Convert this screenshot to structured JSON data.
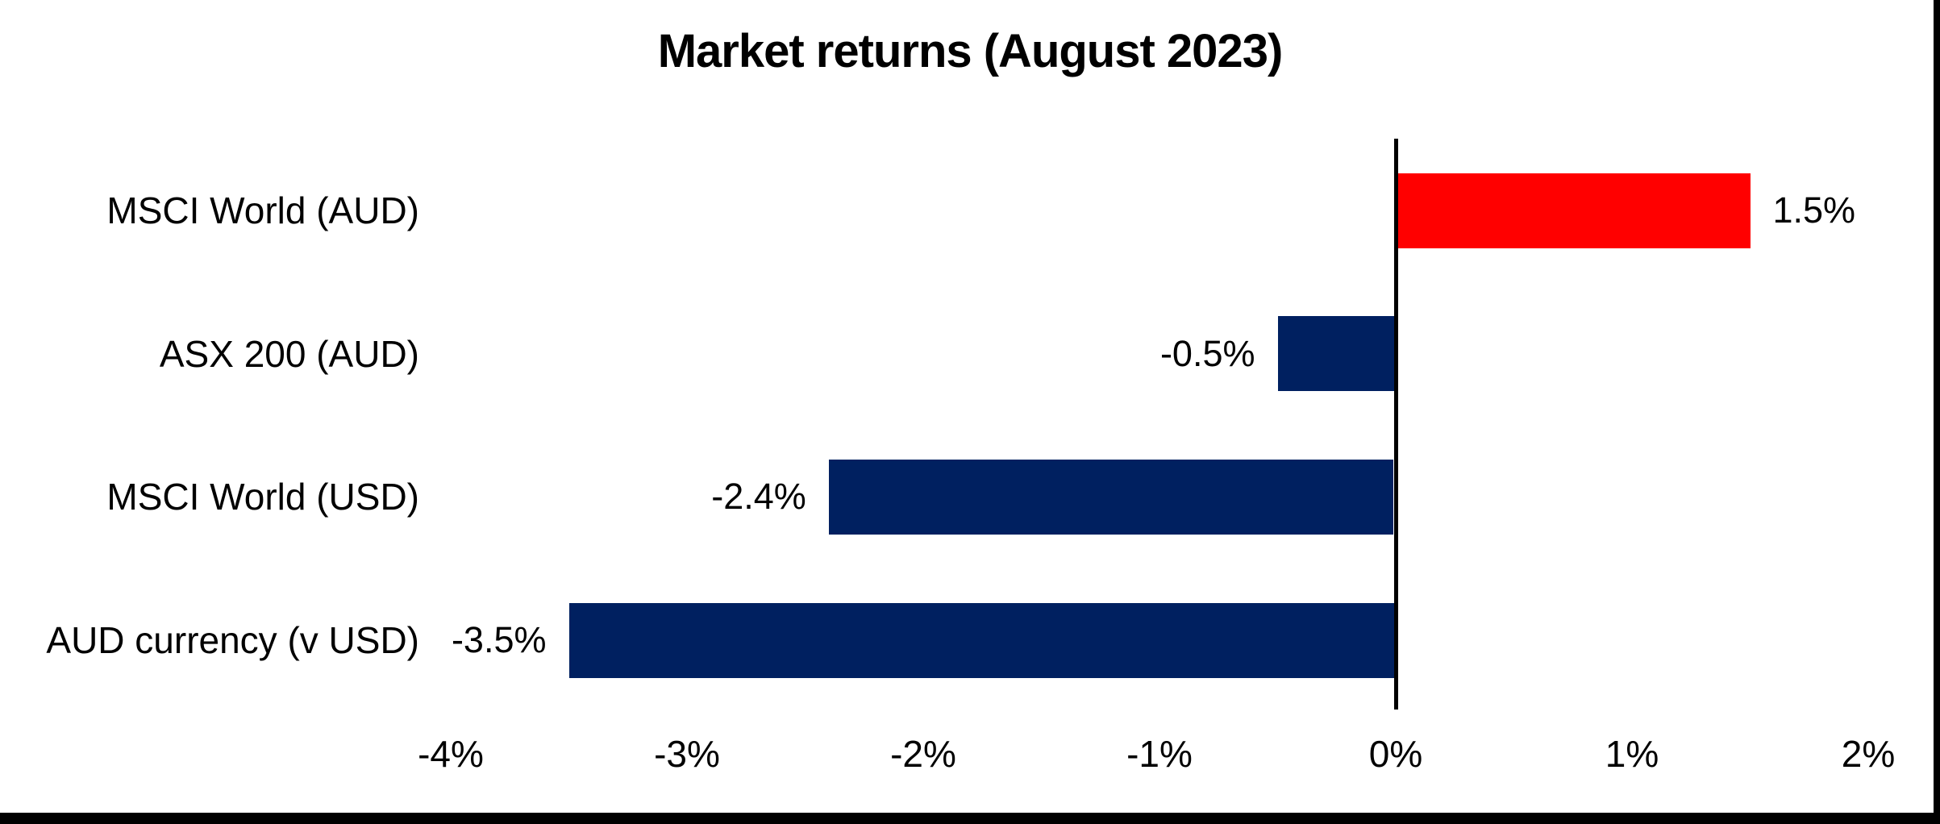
{
  "chart_data": {
    "type": "bar",
    "orientation": "horizontal",
    "title": "Market returns (August 2023)",
    "categories": [
      "MSCI World (AUD)",
      "ASX 200 (AUD)",
      "MSCI World (USD)",
      "AUD currency (v USD)"
    ],
    "values": [
      1.5,
      -0.5,
      -2.4,
      -3.5
    ],
    "value_labels": [
      "1.5%",
      "-0.5%",
      "-2.4%",
      "-3.5%"
    ],
    "xlabel": "",
    "ylabel": "",
    "xlim": [
      -4,
      2
    ],
    "x_tick_step": 1,
    "x_tick_labels": [
      "-4%",
      "-3%",
      "-2%",
      "-1%",
      "0%",
      "1%",
      "2%"
    ],
    "grid": false,
    "legend": false,
    "colors": {
      "positive_bar": "#FF0000",
      "negative_bar": "#002060",
      "axis_line": "#000000",
      "text": "#000000",
      "background": "#FFFFFF",
      "frame_border": "#000000"
    }
  }
}
